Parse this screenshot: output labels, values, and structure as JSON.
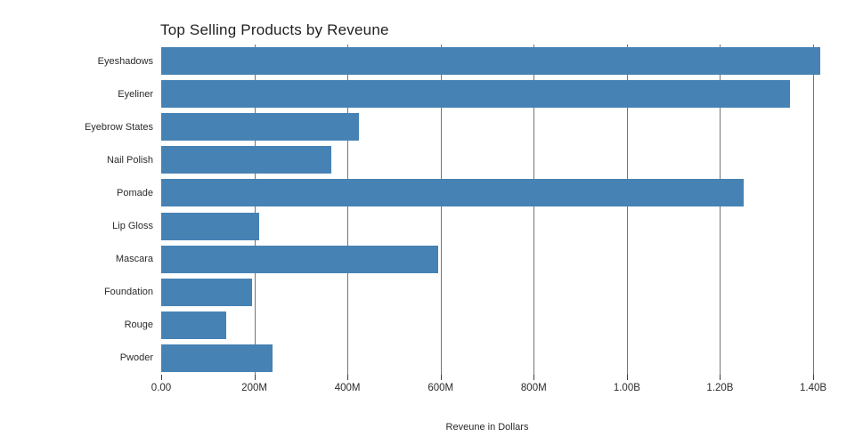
{
  "chart_data": {
    "type": "bar",
    "orientation": "horizontal",
    "title": "Top Selling Products by Reveune",
    "xlabel": "Reveune in Dollars",
    "ylabel": "",
    "categories": [
      "Eyeshadows",
      "Eyeliner",
      "Eyebrow States",
      "Nail Polish",
      "Pomade",
      "Lip Gloss",
      "Mascara",
      "Foundation",
      "Rouge",
      "Pwoder"
    ],
    "values_millions": [
      1415,
      1350,
      425,
      365,
      1250,
      210,
      595,
      195,
      140,
      240
    ],
    "x_ticks": [
      {
        "value_m": 0,
        "label": "0.00"
      },
      {
        "value_m": 200,
        "label": "200M"
      },
      {
        "value_m": 400,
        "label": "400M"
      },
      {
        "value_m": 600,
        "label": "600M"
      },
      {
        "value_m": 800,
        "label": "800M"
      },
      {
        "value_m": 1000,
        "label": "1.00B"
      },
      {
        "value_m": 1200,
        "label": "1.20B"
      },
      {
        "value_m": 1400,
        "label": "1.40B"
      }
    ],
    "xlim_millions": [
      0,
      1442
    ],
    "grid": "vertical-only",
    "legend": "none",
    "bar_color": "#4682B4",
    "grid_color": "#757575",
    "tick_color": "#3c3c3c",
    "text_color": "#2b2b2b",
    "background_color": "#ffffff"
  }
}
